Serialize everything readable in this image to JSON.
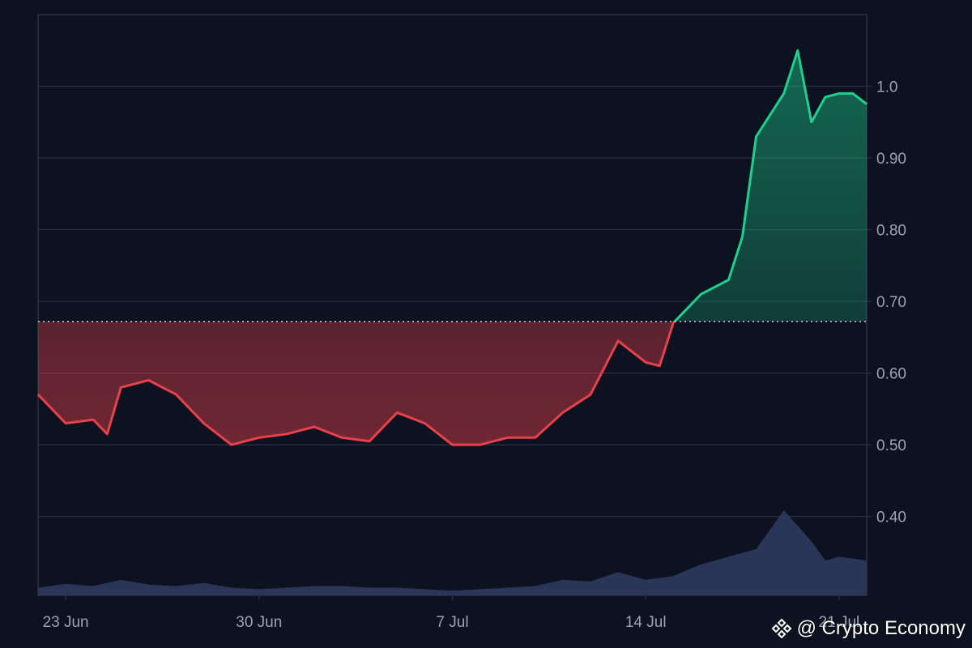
{
  "chart_data": {
    "type": "line",
    "title": "",
    "xlabel": "",
    "ylabel": "",
    "x_ticks": [
      "23 Jun",
      "30 Jun",
      "7 Jul",
      "14 Jul",
      "21 Jul"
    ],
    "y_ticks": [
      "0.40",
      "0.50",
      "0.60",
      "0.70",
      "0.80",
      "0.90",
      "1.0"
    ],
    "ylim": [
      0.29,
      1.1
    ],
    "xlim": [
      "2025-06-22",
      "2025-07-22"
    ],
    "baseline": 0.672,
    "y_axis_position": "right",
    "grid": true,
    "series": [
      {
        "points": [
          [
            "2025-06-22",
            0.57
          ],
          [
            "2025-06-23",
            0.53
          ],
          [
            "2025-06-24",
            0.535
          ],
          [
            "2025-06-24T12:00",
            0.515
          ],
          [
            "2025-06-25",
            0.58
          ],
          [
            "2025-06-26",
            0.59
          ],
          [
            "2025-06-27",
            0.57
          ],
          [
            "2025-06-28",
            0.53
          ],
          [
            "2025-06-29",
            0.5
          ],
          [
            "2025-06-30",
            0.51
          ],
          [
            "2025-07-01",
            0.515
          ],
          [
            "2025-07-02",
            0.525
          ],
          [
            "2025-07-03",
            0.51
          ],
          [
            "2025-07-04",
            0.505
          ],
          [
            "2025-07-05",
            0.545
          ],
          [
            "2025-07-06",
            0.53
          ],
          [
            "2025-07-07",
            0.5
          ],
          [
            "2025-07-08",
            0.5
          ],
          [
            "2025-07-09",
            0.51
          ],
          [
            "2025-07-10",
            0.51
          ],
          [
            "2025-07-11",
            0.545
          ],
          [
            "2025-07-12",
            0.57
          ],
          [
            "2025-07-13",
            0.645
          ],
          [
            "2025-07-14",
            0.615
          ],
          [
            "2025-07-14T12:00",
            0.61
          ],
          [
            "2025-07-15",
            0.67
          ],
          [
            "2025-07-15T12:00",
            0.69
          ],
          [
            "2025-07-16",
            0.71
          ],
          [
            "2025-07-17",
            0.73
          ],
          [
            "2025-07-17T12:00",
            0.79
          ],
          [
            "2025-07-18",
            0.93
          ],
          [
            "2025-07-19",
            0.99
          ],
          [
            "2025-07-19T12:00",
            1.05
          ],
          [
            "2025-07-20",
            0.95
          ],
          [
            "2025-07-20T12:00",
            0.985
          ],
          [
            "2025-07-21",
            0.99
          ],
          [
            "2025-07-21T12:00",
            0.99
          ],
          [
            "2025-07-22",
            0.975
          ]
        ],
        "color_below": "#e8414b",
        "color_above": "#1dd18d"
      }
    ],
    "volume": [
      [
        "2025-06-22",
        0.01
      ],
      [
        "2025-06-23",
        0.015
      ],
      [
        "2025-06-24",
        0.012
      ],
      [
        "2025-06-25",
        0.02
      ],
      [
        "2025-06-26",
        0.014
      ],
      [
        "2025-06-27",
        0.012
      ],
      [
        "2025-06-28",
        0.016
      ],
      [
        "2025-06-29",
        0.01
      ],
      [
        "2025-06-30",
        0.008
      ],
      [
        "2025-07-01",
        0.01
      ],
      [
        "2025-07-02",
        0.012
      ],
      [
        "2025-07-03",
        0.012
      ],
      [
        "2025-07-04",
        0.01
      ],
      [
        "2025-07-05",
        0.01
      ],
      [
        "2025-07-06",
        0.008
      ],
      [
        "2025-07-07",
        0.006
      ],
      [
        "2025-07-08",
        0.008
      ],
      [
        "2025-07-09",
        0.01
      ],
      [
        "2025-07-10",
        0.012
      ],
      [
        "2025-07-11",
        0.02
      ],
      [
        "2025-07-12",
        0.018
      ],
      [
        "2025-07-13",
        0.03
      ],
      [
        "2025-07-14",
        0.02
      ],
      [
        "2025-07-15",
        0.025
      ],
      [
        "2025-07-16",
        0.04
      ],
      [
        "2025-07-17",
        0.05
      ],
      [
        "2025-07-18",
        0.06
      ],
      [
        "2025-07-19",
        0.11
      ],
      [
        "2025-07-20",
        0.07
      ],
      [
        "2025-07-20T12:00",
        0.045
      ],
      [
        "2025-07-21",
        0.05
      ],
      [
        "2025-07-22",
        0.045
      ]
    ],
    "colors": {
      "background": "#0d1220",
      "grid": "#2b3142",
      "baseline": "#c9ccd4",
      "volume": "#2a3558",
      "axis_text": "#9aa3b2"
    }
  },
  "watermark": {
    "text": "@ Crypto Economy",
    "icon": "binance-diamond-icon"
  }
}
